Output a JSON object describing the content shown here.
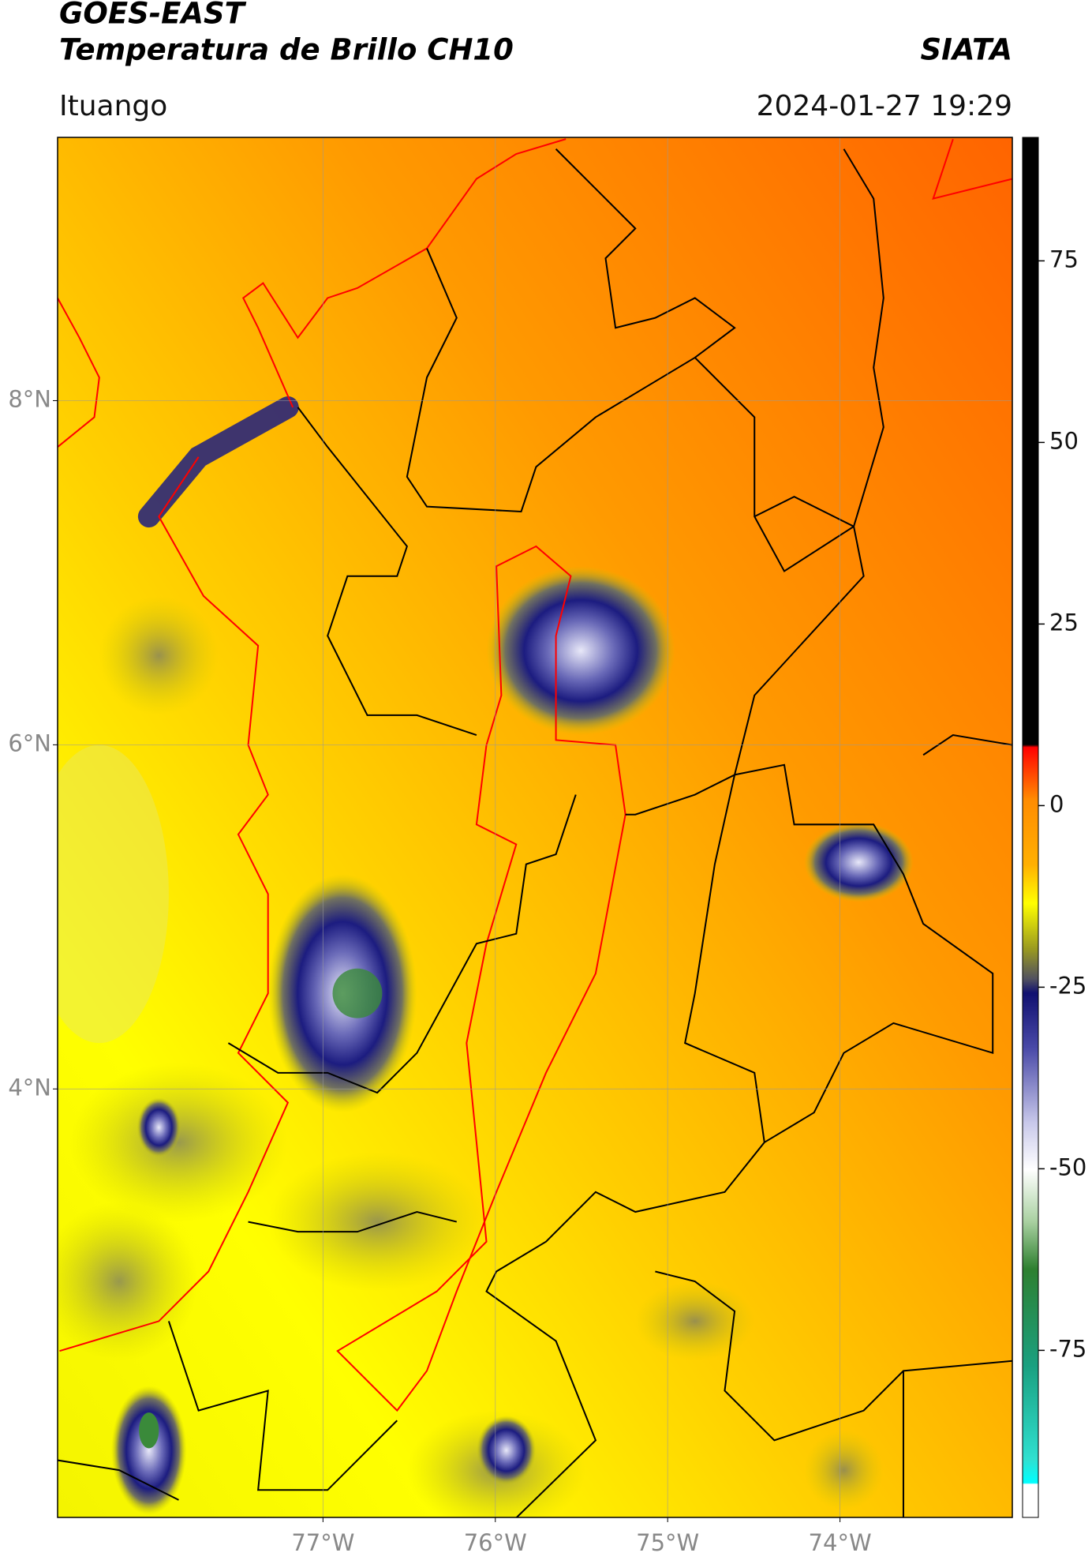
{
  "header": {
    "satellite": "GOES-EAST",
    "product": "Temperatura de Brillo CH10",
    "source": "SIATA",
    "region": "Ituango",
    "datetime": "2024-01-27 19:29"
  },
  "map_data": {
    "type": "map",
    "xlim": [
      -78.54,
      -73.0
    ],
    "ylim": [
      1.51,
      9.53
    ],
    "xticks": [
      {
        "value": -77,
        "label": "77°W"
      },
      {
        "value": -76,
        "label": "76°W"
      },
      {
        "value": -75,
        "label": "75°W"
      },
      {
        "value": -74,
        "label": "74°W"
      }
    ],
    "yticks": [
      {
        "value": 8,
        "label": "8°N"
      },
      {
        "value": 6,
        "label": "6°N"
      },
      {
        "value": 4,
        "label": "4°N"
      }
    ],
    "grid": true,
    "colorbar": {
      "lim": [
        -98,
        92
      ],
      "ticks": [
        75,
        50,
        25,
        0,
        -25,
        -50,
        -75
      ]
    }
  }
}
